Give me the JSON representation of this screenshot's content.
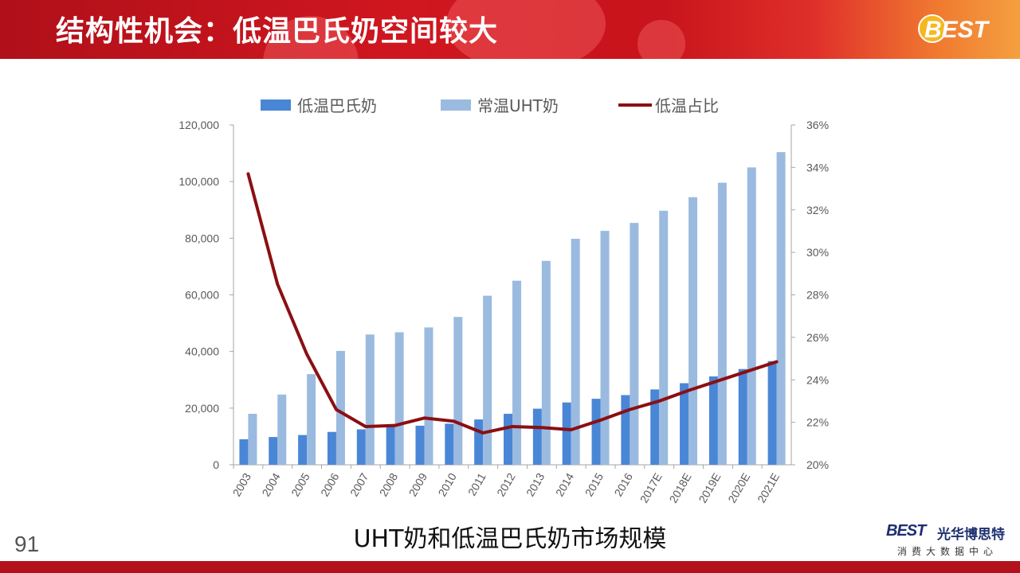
{
  "header": {
    "title": "结构性机会：低温巴氏奶空间较大",
    "logo_text": "BEST"
  },
  "caption": "UHT奶和低温巴氏奶市场规模",
  "page_number": "91",
  "brand": {
    "mark": "BEST",
    "name": "光华博思特",
    "subtitle": "消费大数据中心"
  },
  "colors": {
    "low_temp": "#4a86d6",
    "uht": "#9bbae0",
    "ratio": "#8b0f12",
    "header": "#c8141c"
  },
  "chart_data": {
    "type": "bar",
    "categories": [
      "2003",
      "2004",
      "2005",
      "2006",
      "2007",
      "2008",
      "2009",
      "2010",
      "2011",
      "2012",
      "2013",
      "2014",
      "2015",
      "2016",
      "2017E",
      "2018E",
      "2019E",
      "2020E",
      "2021E"
    ],
    "series": [
      {
        "name": "低温巴氏奶",
        "type": "bar",
        "axis": "left",
        "values": [
          9000,
          9800,
          10500,
          11600,
          12500,
          13600,
          13800,
          14500,
          16000,
          18000,
          19800,
          22000,
          23300,
          24600,
          26600,
          28800,
          31200,
          33800,
          36600
        ]
      },
      {
        "name": "常温UHT奶",
        "type": "bar",
        "axis": "left",
        "values": [
          18000,
          24800,
          32000,
          40200,
          46000,
          46800,
          48500,
          52200,
          59700,
          65000,
          72000,
          79800,
          82600,
          85400,
          89700,
          94500,
          99600,
          105000,
          110400
        ]
      },
      {
        "name": "低温占比",
        "type": "line",
        "axis": "right",
        "values": [
          33.7,
          28.5,
          25.2,
          22.6,
          21.8,
          21.85,
          22.2,
          22.05,
          21.5,
          21.8,
          21.75,
          21.65,
          22.1,
          22.6,
          23.0,
          23.5,
          23.95,
          24.4,
          24.85
        ]
      }
    ],
    "left_axis": {
      "min": 0,
      "max": 120000,
      "ticks": [
        "0",
        "20,000",
        "40,000",
        "60,000",
        "80,000",
        "100,000",
        "120,000"
      ]
    },
    "right_axis": {
      "min": 20,
      "max": 36,
      "ticks": [
        "20%",
        "22%",
        "24%",
        "26%",
        "28%",
        "30%",
        "32%",
        "34%",
        "36%"
      ]
    },
    "legend_position": "top",
    "grid": false
  }
}
